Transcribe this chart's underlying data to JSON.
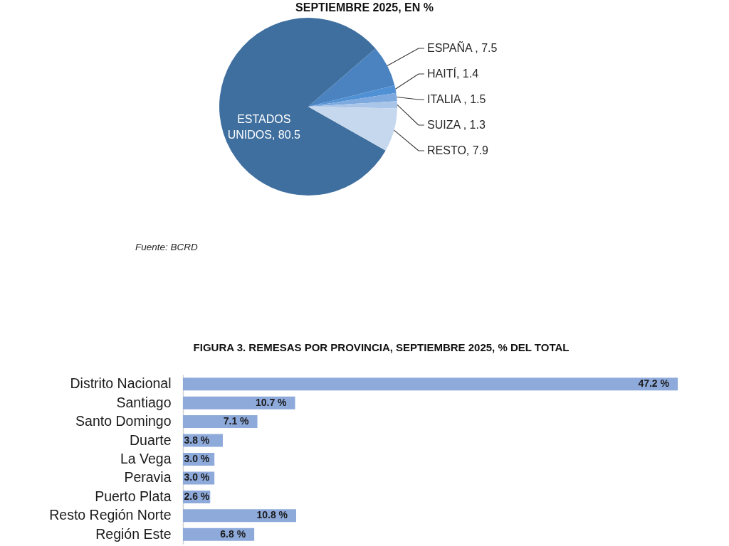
{
  "chart_data": [
    {
      "type": "pie",
      "title": "SEPTIEMBRE 2025, EN %",
      "categories": [
        "ESTADOS UNIDOS, 80.5",
        "ESPAÑA , 7.5",
        "HAITÍ, 1.4",
        "ITALIA , 1.5",
        "SUIZA , 1.3",
        "RESTO, 7.9"
      ],
      "values": [
        80.5,
        7.5,
        1.4,
        1.5,
        1.3,
        7.9
      ],
      "colors": [
        "#3f6f9f",
        "#4a83bf",
        "#5090d4",
        "#7da9de",
        "#a9c5e8",
        "#c6d8ee"
      ],
      "annotations": [
        "Fuente: BCRD"
      ]
    },
    {
      "type": "bar",
      "orientation": "horizontal",
      "title": "FIGURA 3. REMESAS POR PROVINCIA, SEPTIEMBRE 2025, % DEL TOTAL",
      "categories": [
        "Distrito Nacional",
        "Santiago",
        "Santo Domingo",
        "Duarte",
        "La Vega",
        "Peravia",
        "Puerto Plata",
        "Resto Región Norte",
        "Región Este"
      ],
      "values": [
        47.2,
        10.7,
        7.1,
        3.8,
        3.0,
        3.0,
        2.6,
        10.8,
        6.8
      ],
      "color": "#8eaadb",
      "value_labels": [
        "47.2 %",
        "10.7 %",
        "7.1 %",
        "3.8 %",
        "3.0 %",
        "3.0 %",
        "2.6 %",
        "10.8 %",
        "6.8 %"
      ],
      "tick_labels": "y"
    }
  ]
}
